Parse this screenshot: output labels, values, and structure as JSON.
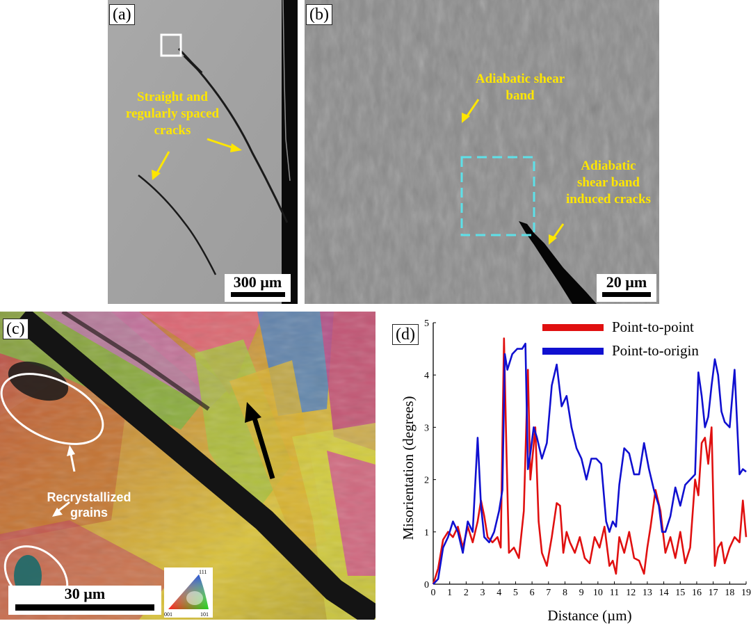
{
  "panels": {
    "a": {
      "label": "(a)",
      "annotation_lines": [
        "Straight and",
        "regularly spaced",
        "cracks"
      ],
      "scale_label": "300 µm"
    },
    "b": {
      "label": "(b)",
      "annotation1_lines": [
        "Adiabatic shear",
        "band"
      ],
      "annotation2_lines": [
        "Adiabatic",
        "shear band",
        "induced cracks"
      ],
      "scale_label": "20 µm"
    },
    "c": {
      "label": "(c)",
      "annotation_lines": [
        "Recrystallized",
        "grains"
      ],
      "scale_label": "30 µm",
      "key_labels": {
        "top": "111",
        "left": "001",
        "right": "101"
      }
    },
    "d": {
      "label": "(d)"
    }
  },
  "colors": {
    "annotation": "#ffe600",
    "point_to_point": "#e01010",
    "point_to_origin": "#1010d0",
    "box_cyan": "#5ee0e8"
  },
  "chart_data": {
    "type": "line",
    "xlabel": "Distance (µm)",
    "ylabel": "Misorientation (degrees)",
    "xlim": [
      0,
      19
    ],
    "ylim": [
      0,
      5
    ],
    "xticks": [
      "0",
      "1",
      "2",
      "3",
      "4",
      "5",
      "6",
      "7",
      "8",
      "9",
      "10",
      "11",
      "12",
      "13",
      "14",
      "15",
      "16",
      "17",
      "18",
      "19"
    ],
    "yticks": [
      "0",
      "1",
      "2",
      "3",
      "4",
      "5"
    ],
    "legend_position": "top-right",
    "series": [
      {
        "name": "Point-to-point",
        "color": "#e01010",
        "x": [
          0,
          0.3,
          0.6,
          0.9,
          1.2,
          1.5,
          1.8,
          2.1,
          2.4,
          2.7,
          2.9,
          3.1,
          3.3,
          3.6,
          3.9,
          4.1,
          4.3,
          4.45,
          4.6,
          4.9,
          5.2,
          5.5,
          5.75,
          5.9,
          6.05,
          6.2,
          6.4,
          6.6,
          6.9,
          7.2,
          7.5,
          7.7,
          7.9,
          8.1,
          8.3,
          8.6,
          8.9,
          9.2,
          9.5,
          9.8,
          10.1,
          10.4,
          10.7,
          10.9,
          11.1,
          11.3,
          11.6,
          11.9,
          12.2,
          12.5,
          12.8,
          13.0,
          13.2,
          13.5,
          13.8,
          14.1,
          14.4,
          14.7,
          15.0,
          15.3,
          15.6,
          15.9,
          16.1,
          16.3,
          16.5,
          16.7,
          16.9,
          17.1,
          17.3,
          17.5,
          17.7,
          18.0,
          18.3,
          18.6,
          18.8,
          19.0
        ],
        "y": [
          0,
          0.3,
          0.85,
          1.0,
          0.9,
          1.1,
          0.7,
          1.1,
          0.8,
          1.2,
          1.6,
          1.3,
          0.9,
          0.8,
          0.9,
          0.7,
          4.7,
          2.5,
          0.6,
          0.7,
          0.5,
          1.4,
          4.1,
          2.0,
          2.5,
          3.0,
          1.2,
          0.6,
          0.35,
          0.9,
          1.55,
          1.5,
          0.6,
          1.0,
          0.8,
          0.6,
          0.9,
          0.5,
          0.4,
          0.9,
          0.7,
          1.1,
          0.35,
          0.45,
          0.2,
          0.9,
          0.6,
          1.0,
          0.5,
          0.45,
          0.2,
          0.7,
          1.1,
          1.8,
          1.4,
          0.6,
          0.9,
          0.5,
          1.0,
          0.4,
          0.7,
          2.0,
          1.7,
          2.7,
          2.8,
          2.3,
          3.0,
          0.35,
          0.7,
          0.8,
          0.4,
          0.7,
          0.9,
          0.8,
          1.6,
          0.9
        ]
      },
      {
        "name": "Point-to-origin",
        "color": "#1010d0",
        "x": [
          0,
          0.3,
          0.6,
          0.9,
          1.2,
          1.5,
          1.8,
          2.1,
          2.4,
          2.7,
          2.9,
          3.1,
          3.4,
          3.7,
          4.0,
          4.2,
          4.35,
          4.5,
          4.8,
          5.1,
          5.4,
          5.6,
          5.75,
          5.9,
          6.1,
          6.3,
          6.6,
          6.9,
          7.2,
          7.5,
          7.8,
          8.1,
          8.4,
          8.7,
          9.0,
          9.3,
          9.6,
          9.9,
          10.2,
          10.5,
          10.7,
          10.9,
          11.1,
          11.3,
          11.6,
          11.9,
          12.2,
          12.5,
          12.8,
          13.1,
          13.4,
          13.7,
          13.9,
          14.1,
          14.4,
          14.7,
          15.0,
          15.3,
          15.6,
          15.9,
          16.1,
          16.3,
          16.5,
          16.7,
          16.9,
          17.1,
          17.3,
          17.5,
          17.7,
          18.0,
          18.3,
          18.6,
          18.8,
          19.0
        ],
        "y": [
          0,
          0.1,
          0.7,
          0.9,
          1.2,
          1.0,
          0.6,
          1.2,
          1.0,
          2.8,
          1.5,
          0.9,
          0.8,
          1.0,
          1.4,
          1.8,
          4.4,
          4.1,
          4.4,
          4.5,
          4.5,
          4.6,
          2.2,
          2.5,
          3.0,
          2.8,
          2.4,
          2.7,
          3.8,
          4.2,
          3.4,
          3.6,
          3.0,
          2.6,
          2.4,
          2.0,
          2.4,
          2.4,
          2.3,
          1.2,
          1.0,
          1.2,
          1.1,
          1.9,
          2.6,
          2.5,
          2.1,
          2.1,
          2.7,
          2.2,
          1.8,
          1.5,
          1.0,
          1.0,
          1.3,
          1.85,
          1.5,
          1.9,
          2.0,
          2.1,
          4.05,
          3.6,
          3.0,
          3.2,
          3.8,
          4.3,
          4.0,
          3.3,
          3.1,
          3.0,
          4.1,
          2.1,
          2.2,
          2.15
        ]
      }
    ]
  }
}
